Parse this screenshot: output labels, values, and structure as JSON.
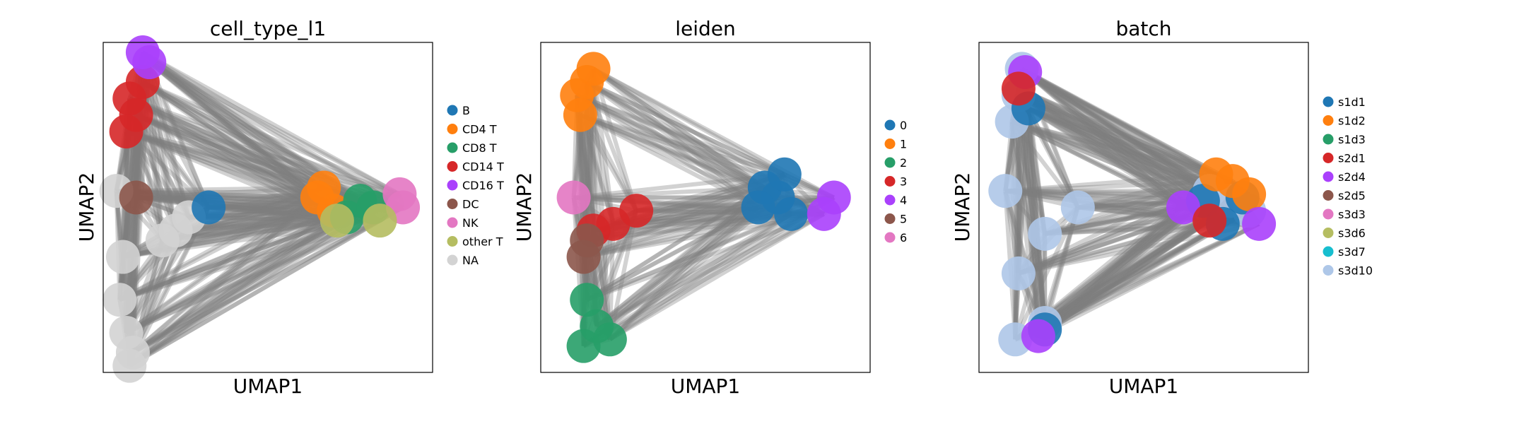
{
  "figure": {
    "colors": {
      "edges": "#7f7f7f",
      "frame": "#000000",
      "background": "#ffffff"
    }
  },
  "chart_data": [
    {
      "type": "scatter",
      "title": "cell_type_l1",
      "xlabel": "UMAP1",
      "ylabel": "UMAP2",
      "xticks": [],
      "yticks": [],
      "grid": false,
      "legend_position": "right",
      "legend": [
        {
          "label": "B",
          "color": "#1f77b4"
        },
        {
          "label": "CD4 T",
          "color": "#ff7f0e"
        },
        {
          "label": "CD8 T",
          "color": "#279e68"
        },
        {
          "label": "CD14 T",
          "color": "#d62728"
        },
        {
          "label": "CD16 T",
          "color": "#aa40fc"
        },
        {
          "label": "DC",
          "color": "#8c564b"
        },
        {
          "label": "NK",
          "color": "#e377c2"
        },
        {
          "label": "other T",
          "color": "#b5bd61"
        },
        {
          "label": "NA",
          "color": "#d3d3d3"
        }
      ],
      "series": [
        {
          "name": "NA",
          "color": "#d3d3d3",
          "x": [
            0.06,
            0.05,
            0.07,
            0.09,
            0.08,
            0.22,
            0.26,
            0.18,
            0.04
          ],
          "y": [
            0.35,
            0.22,
            0.12,
            0.06,
            0.02,
            0.43,
            0.47,
            0.4,
            0.55
          ]
        },
        {
          "name": "CD14 T",
          "color": "#d62728",
          "x": [
            0.08,
            0.1,
            0.07,
            0.12
          ],
          "y": [
            0.83,
            0.78,
            0.73,
            0.88
          ]
        },
        {
          "name": "CD16 T",
          "color": "#aa40fc",
          "x": [
            0.14,
            0.12
          ],
          "y": [
            0.94,
            0.97
          ]
        },
        {
          "name": "B",
          "color": "#1f77b4",
          "x": [
            0.32
          ],
          "y": [
            0.5
          ]
        },
        {
          "name": "DC",
          "color": "#8c564b",
          "x": [
            0.1
          ],
          "y": [
            0.53
          ]
        },
        {
          "name": "CD4 T",
          "color": "#ff7f0e",
          "x": [
            0.67,
            0.65,
            0.7
          ],
          "y": [
            0.56,
            0.53,
            0.49
          ]
        },
        {
          "name": "CD8 T",
          "color": "#279e68",
          "x": [
            0.78,
            0.82,
            0.74
          ],
          "y": [
            0.52,
            0.5,
            0.47
          ]
        },
        {
          "name": "NK",
          "color": "#e377c2",
          "x": [
            0.9,
            0.91
          ],
          "y": [
            0.54,
            0.5
          ]
        },
        {
          "name": "other T",
          "color": "#b5bd61",
          "x": [
            0.84,
            0.71
          ],
          "y": [
            0.46,
            0.46
          ]
        }
      ]
    },
    {
      "type": "scatter",
      "title": "leiden",
      "xlabel": "UMAP1",
      "ylabel": "UMAP2",
      "xticks": [],
      "yticks": [],
      "grid": false,
      "legend_position": "right",
      "legend": [
        {
          "label": "0",
          "color": "#1f77b4"
        },
        {
          "label": "1",
          "color": "#ff7f0e"
        },
        {
          "label": "2",
          "color": "#279e68"
        },
        {
          "label": "3",
          "color": "#d62728"
        },
        {
          "label": "4",
          "color": "#aa40fc"
        },
        {
          "label": "5",
          "color": "#8c564b"
        },
        {
          "label": "6",
          "color": "#e377c2"
        }
      ],
      "series": [
        {
          "name": "0",
          "color": "#1f77b4",
          "x": [
            0.68,
            0.72,
            0.76,
            0.66,
            0.74
          ],
          "y": [
            0.56,
            0.53,
            0.48,
            0.5,
            0.6
          ]
        },
        {
          "name": "1",
          "color": "#ff7f0e",
          "x": [
            0.14,
            0.11,
            0.16,
            0.12
          ],
          "y": [
            0.88,
            0.84,
            0.92,
            0.78
          ]
        },
        {
          "name": "2",
          "color": "#279e68",
          "x": [
            0.17,
            0.13,
            0.21,
            0.14
          ],
          "y": [
            0.14,
            0.08,
            0.1,
            0.22
          ]
        },
        {
          "name": "3",
          "color": "#d62728",
          "x": [
            0.29,
            0.22,
            0.16
          ],
          "y": [
            0.49,
            0.45,
            0.43
          ]
        },
        {
          "name": "4",
          "color": "#aa40fc",
          "x": [
            0.89,
            0.86
          ],
          "y": [
            0.53,
            0.48
          ]
        },
        {
          "name": "5",
          "color": "#8c564b",
          "x": [
            0.14,
            0.13
          ],
          "y": [
            0.4,
            0.35
          ]
        },
        {
          "name": "6",
          "color": "#e377c2",
          "x": [
            0.1
          ],
          "y": [
            0.53
          ]
        }
      ]
    },
    {
      "type": "scatter",
      "title": "batch",
      "xlabel": "UMAP1",
      "ylabel": "UMAP2",
      "xticks": [],
      "yticks": [],
      "grid": false,
      "legend_position": "right",
      "legend": [
        {
          "label": "s1d1",
          "color": "#1f77b4"
        },
        {
          "label": "s1d2",
          "color": "#ff7f0e"
        },
        {
          "label": "s1d3",
          "color": "#279e68"
        },
        {
          "label": "s2d1",
          "color": "#d62728"
        },
        {
          "label": "s2d4",
          "color": "#aa40fc"
        },
        {
          "label": "s2d5",
          "color": "#8c564b"
        },
        {
          "label": "s3d3",
          "color": "#e377c2"
        },
        {
          "label": "s3d6",
          "color": "#b5bd61"
        },
        {
          "label": "s3d7",
          "color": "#17becf"
        },
        {
          "label": "s3d10",
          "color": "#aec7e8"
        }
      ],
      "series": [
        {
          "name": "s3d10",
          "color": "#aec7e8",
          "x": [
            0.12,
            0.1,
            0.13,
            0.7,
            0.76,
            0.82,
            0.3,
            0.2,
            0.12,
            0.2,
            0.11,
            0.08
          ],
          "y": [
            0.84,
            0.76,
            0.92,
            0.55,
            0.52,
            0.49,
            0.5,
            0.42,
            0.3,
            0.15,
            0.1,
            0.55
          ]
        },
        {
          "name": "s1d1",
          "color": "#1f77b4",
          "x": [
            0.68,
            0.74,
            0.8,
            0.15,
            0.2
          ],
          "y": [
            0.52,
            0.45,
            0.53,
            0.8,
            0.13
          ]
        },
        {
          "name": "s1d2",
          "color": "#ff7f0e",
          "x": [
            0.77,
            0.82,
            0.72
          ],
          "y": [
            0.58,
            0.54,
            0.6
          ]
        },
        {
          "name": "s2d4",
          "color": "#aa40fc",
          "x": [
            0.62,
            0.85,
            0.14,
            0.18
          ],
          "y": [
            0.5,
            0.45,
            0.91,
            0.11
          ]
        },
        {
          "name": "s2d1",
          "color": "#d62728",
          "x": [
            0.12,
            0.7
          ],
          "y": [
            0.86,
            0.46
          ]
        }
      ]
    }
  ]
}
